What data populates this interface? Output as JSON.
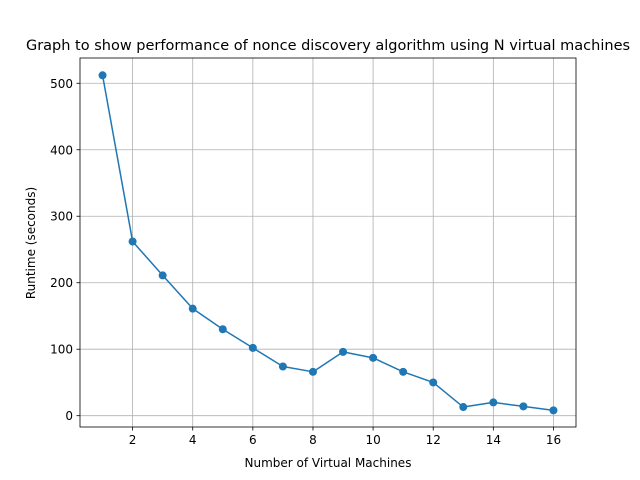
{
  "chart_data": {
    "type": "line",
    "title": "Graph to show performance of nonce discovery algorithm using N virtual machines",
    "xlabel": "Number of Virtual Machines",
    "ylabel": "Runtime (seconds)",
    "xlim": [
      0.25,
      16.75
    ],
    "ylim": [
      -17,
      538
    ],
    "xticks": [
      2,
      4,
      6,
      8,
      10,
      12,
      14,
      16
    ],
    "yticks": [
      0,
      100,
      200,
      300,
      400,
      500
    ],
    "grid": true,
    "legend": "none",
    "color": "#1f77b4",
    "marker": "circle",
    "series": [
      {
        "x": [
          1,
          2,
          3,
          4,
          5,
          6,
          7,
          8,
          9,
          10,
          11,
          12,
          13,
          14,
          15,
          16
        ],
        "values": [
          512,
          262,
          211,
          161,
          130,
          102,
          74,
          66,
          96,
          87,
          66,
          50,
          13,
          20,
          14,
          8
        ]
      }
    ]
  }
}
